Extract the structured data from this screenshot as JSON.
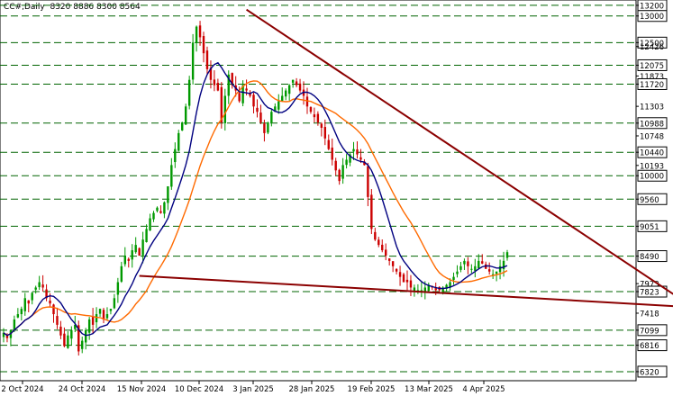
{
  "chart_data": {
    "type": "candlestick",
    "header": {
      "symbol": "CC#,Daily",
      "ohlc": "8320 8886 8300 8564"
    },
    "x_tick_labels": [
      "2 Oct 2024",
      "24 Oct 2024",
      "15 Nov 2024",
      "10 Dec 2024",
      "3 Jan 2025",
      "28 Jan 2025",
      "19 Feb 2025",
      "13 Mar 2025",
      "4 Apr 2025"
    ],
    "y_range": [
      6150,
      13300
    ],
    "y_ticks": [
      {
        "value": 13200,
        "label": "13200",
        "boxed": true
      },
      {
        "value": 13000,
        "label": "13000",
        "boxed": true
      },
      {
        "value": 12500,
        "label": "12500",
        "boxed": true
      },
      {
        "value": 12426,
        "label": "12426",
        "boxed": false
      },
      {
        "value": 12075,
        "label": "12075",
        "boxed": true
      },
      {
        "value": 11873,
        "label": "11873",
        "boxed": false
      },
      {
        "value": 11720,
        "label": "11720",
        "boxed": true
      },
      {
        "value": 11303,
        "label": "11303",
        "boxed": false
      },
      {
        "value": 10988,
        "label": "10988",
        "boxed": true
      },
      {
        "value": 10748,
        "label": "10748",
        "boxed": false
      },
      {
        "value": 10440,
        "label": "10440",
        "boxed": true
      },
      {
        "value": 10193,
        "label": "10193",
        "boxed": false
      },
      {
        "value": 10000,
        "label": "10000",
        "boxed": true
      },
      {
        "value": 9560,
        "label": "9560",
        "boxed": true
      },
      {
        "value": 9051,
        "label": "9051",
        "boxed": true
      },
      {
        "value": 8490,
        "label": "8490",
        "boxed": true
      },
      {
        "value": 7973,
        "label": "7973",
        "boxed": false
      },
      {
        "value": 7823,
        "label": "7823",
        "boxed": true
      },
      {
        "value": 7418,
        "label": "7418",
        "boxed": false
      },
      {
        "value": 7099,
        "label": "7099",
        "boxed": true
      },
      {
        "value": 6816,
        "label": "6816",
        "boxed": true
      },
      {
        "value": 6320,
        "label": "6320",
        "boxed": true
      }
    ],
    "horizontal_levels": [
      13200,
      13000,
      12500,
      12075,
      11720,
      10988,
      10440,
      10000,
      9560,
      9051,
      8490,
      7823,
      7099,
      6816,
      6320
    ],
    "x_count": 142,
    "closes": [
      7050,
      6950,
      7100,
      7300,
      7400,
      7500,
      7700,
      7600,
      7800,
      7900,
      8000,
      7900,
      7700,
      7600,
      7400,
      7200,
      7000,
      6800,
      7000,
      7100,
      7200,
      6700,
      6900,
      7100,
      7300,
      7200,
      7400,
      7500,
      7300,
      7400,
      7500,
      7700,
      8000,
      8300,
      8500,
      8400,
      8600,
      8700,
      8500,
      8800,
      9000,
      9200,
      9300,
      9400,
      9300,
      9500,
      9800,
      10200,
      10500,
      10800,
      11000,
      11300,
      11800,
      12500,
      12800,
      12600,
      12300,
      12000,
      11800,
      11700,
      11600,
      11000,
      11500,
      11900,
      11700,
      11600,
      11400,
      11700,
      11600,
      11500,
      11300,
      11200,
      11000,
      10800,
      11000,
      11200,
      11300,
      11400,
      11500,
      11600,
      11700,
      11800,
      11700,
      11600,
      11500,
      11300,
      11200,
      11100,
      11000,
      10900,
      10700,
      10500,
      10300,
      10100,
      9900,
      10200,
      10300,
      10400,
      10500,
      10400,
      10300,
      10200,
      9600,
      9000,
      8800,
      8700,
      8600,
      8500,
      8400,
      8300,
      8200,
      8100,
      8000,
      8000,
      7900,
      7900,
      7850,
      7850,
      7900,
      7950,
      7900,
      7850,
      7850,
      7900,
      7950,
      8000,
      8100,
      8200,
      8300,
      8400,
      8300,
      8250,
      8300,
      8400,
      8350,
      8250,
      8200,
      8150,
      8200,
      8300,
      8400,
      8564
    ],
    "volatility": 220,
    "moving_averages": [
      {
        "name": "",
        "period": 20,
        "color": "#ff6a00"
      },
      {
        "name": "",
        "period": 9,
        "color": "#000080"
      }
    ],
    "trendlines": [
      {
        "from": {
          "i": 68,
          "v": 13120
        },
        "to": {
          "i": 193,
          "v": 7530
        },
        "color": "#8b0000"
      },
      {
        "from": {
          "i": 38,
          "v": 8120
        },
        "to": {
          "i": 193,
          "v": 7530
        },
        "color": "#8b0000"
      }
    ],
    "colors": {
      "up": "#009900",
      "down": "#cc0000",
      "grid": "#006400",
      "background": "#ffffff",
      "axis": "#000000"
    }
  }
}
